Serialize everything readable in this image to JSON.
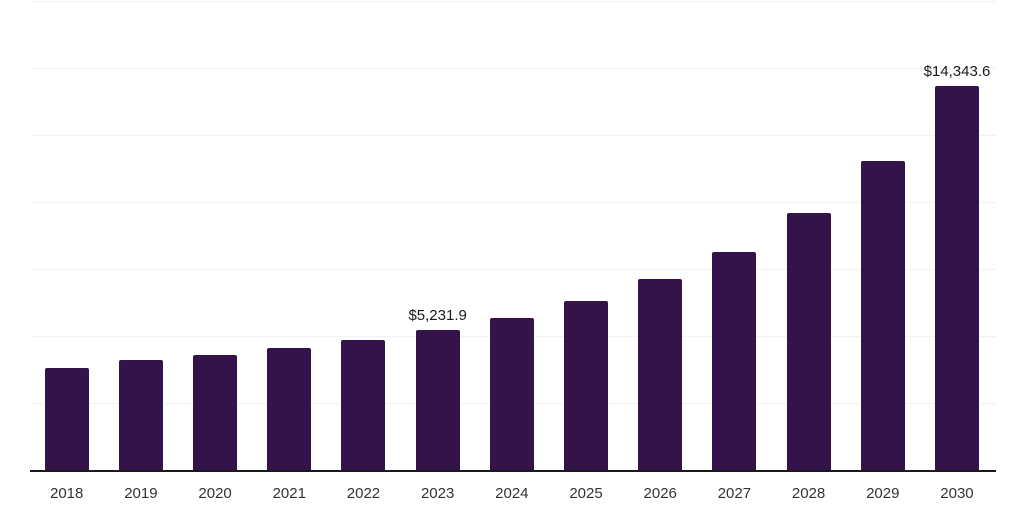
{
  "chart_data": {
    "type": "bar",
    "title": "",
    "xlabel": "",
    "ylabel": "",
    "categories": [
      "2018",
      "2019",
      "2020",
      "2021",
      "2022",
      "2023",
      "2024",
      "2025",
      "2026",
      "2027",
      "2028",
      "2029",
      "2030"
    ],
    "values": [
      3810,
      4105,
      4290,
      4550,
      4850,
      5231.9,
      5680,
      6300,
      7110,
      8140,
      9590,
      11530,
      14343.6
    ],
    "labeled_points": [
      {
        "category": "2023",
        "label": "$5,231.9"
      },
      {
        "category": "2030",
        "label": "$14,343.6"
      }
    ],
    "ylim": [
      0,
      17500
    ],
    "gridline_step": 2500,
    "grid": true,
    "legend": false,
    "bar_color": "#34134a",
    "axis_color": "#1a1a1a",
    "gridline_color": "#f2f2f2",
    "value_label_color": "#1a1a1a",
    "tick_label_color": "#333333"
  }
}
